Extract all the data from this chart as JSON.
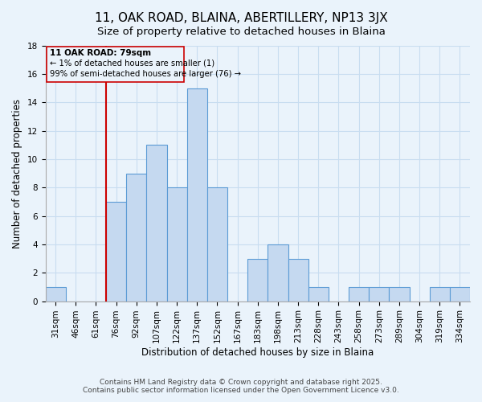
{
  "title": "11, OAK ROAD, BLAINA, ABERTILLERY, NP13 3JX",
  "subtitle": "Size of property relative to detached houses in Blaina",
  "xlabel": "Distribution of detached houses by size in Blaina",
  "ylabel": "Number of detached properties",
  "bin_labels": [
    "31sqm",
    "46sqm",
    "61sqm",
    "76sqm",
    "92sqm",
    "107sqm",
    "122sqm",
    "137sqm",
    "152sqm",
    "167sqm",
    "183sqm",
    "198sqm",
    "213sqm",
    "228sqm",
    "243sqm",
    "258sqm",
    "273sqm",
    "289sqm",
    "304sqm",
    "319sqm",
    "334sqm"
  ],
  "bar_values": [
    1,
    0,
    0,
    7,
    9,
    11,
    8,
    15,
    8,
    0,
    3,
    4,
    3,
    1,
    0,
    1,
    1,
    1,
    0,
    1,
    1
  ],
  "bar_color": "#c5d9f0",
  "bar_edge_color": "#5b9bd5",
  "ylim": [
    0,
    18
  ],
  "yticks": [
    0,
    2,
    4,
    6,
    8,
    10,
    12,
    14,
    16,
    18
  ],
  "vline_x": 3,
  "vline_color": "#cc0000",
  "annotation_title": "11 OAK ROAD: 79sqm",
  "annotation_line1": "← 1% of detached houses are smaller (1)",
  "annotation_line2": "99% of semi-detached houses are larger (76) →",
  "annotation_box_edge": "#cc0000",
  "background_color": "#eaf3fb",
  "grid_color": "#c8ddf0",
  "footer1": "Contains HM Land Registry data © Crown copyright and database right 2025.",
  "footer2": "Contains public sector information licensed under the Open Government Licence v3.0.",
  "title_fontsize": 11,
  "subtitle_fontsize": 9.5,
  "axis_label_fontsize": 8.5,
  "tick_fontsize": 7.5,
  "annotation_fontsize": 7.5,
  "footer_fontsize": 6.5
}
